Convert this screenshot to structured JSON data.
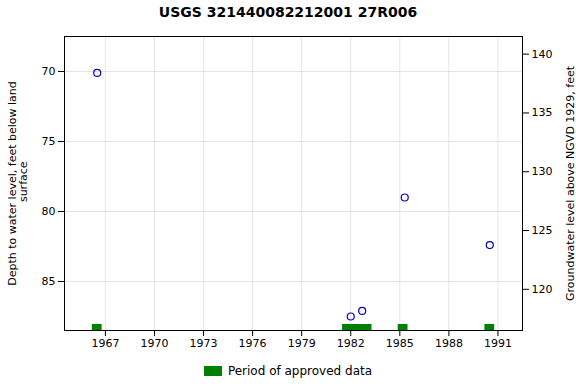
{
  "chart_data": {
    "type": "scatter",
    "title": "USGS 321440082212001 27R006",
    "ylabel": "Depth to water level, feet below land\n surface",
    "y2label": "Groundwater level above NGVD 1929, feet",
    "x": [
      1966.5,
      1982.0,
      1982.7,
      1985.3,
      1990.5
    ],
    "values": [
      70.1,
      87.5,
      87.1,
      79.0,
      82.4
    ],
    "color": "#0000cc",
    "marker": "circle",
    "xlim": [
      1964.5,
      1992.5
    ],
    "xticks": [
      1967,
      1970,
      1973,
      1976,
      1979,
      1982,
      1985,
      1988,
      1991
    ],
    "ylim": [
      88.5,
      67.5
    ],
    "yticks": [
      70,
      75,
      80,
      85
    ],
    "y2lim": [
      116.5,
      141.5
    ],
    "y2ticks": [
      120,
      125,
      130,
      135,
      140
    ],
    "grid": true,
    "legend": "bottom",
    "approved_periods": {
      "name": "Period of approved data",
      "color": "#008000",
      "start": [
        1966.2,
        1981.5,
        1984.9,
        1990.2
      ],
      "end": [
        1966.8,
        1983.3,
        1985.5,
        1990.8
      ]
    }
  }
}
